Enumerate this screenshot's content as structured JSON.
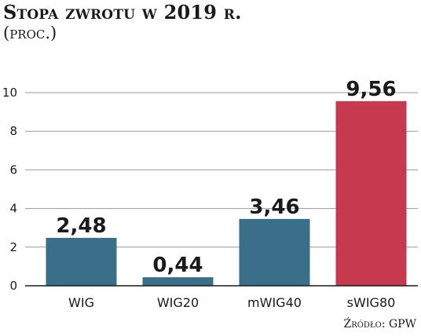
{
  "chart_data": {
    "type": "bar",
    "title": "Stopa zwrotu w 2019 r.",
    "subtitle": "(proc.)",
    "source": "Źródło: GPW",
    "categories": [
      "WIG",
      "WIG20",
      "mWIG40",
      "sWIG80"
    ],
    "values": [
      2.48,
      0.44,
      3.46,
      9.56
    ],
    "data_labels": [
      "2,48",
      "0,44",
      "3,46",
      "9,56"
    ],
    "colors": [
      "#3a6f8a",
      "#3a6f8a",
      "#3a6f8a",
      "#c6394f"
    ],
    "yticks": [
      0,
      2,
      4,
      6,
      8,
      10
    ],
    "ylim": [
      0,
      10
    ],
    "grid": true,
    "xlabel": "",
    "ylabel": ""
  }
}
